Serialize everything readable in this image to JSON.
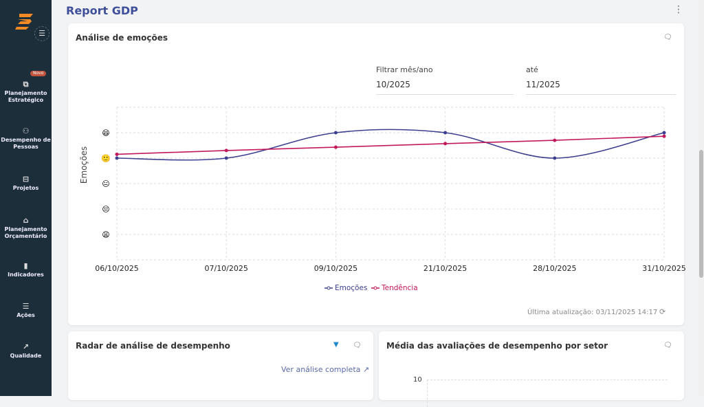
{
  "sidebar": {
    "badge": "Novo",
    "items": [
      {
        "label": "Planejamento Estratégico",
        "icon": "puzzle-icon",
        "glyph": "⧉"
      },
      {
        "label": "Desempenho de Pessoas",
        "icon": "people-icon",
        "glyph": "⚇"
      },
      {
        "label": "Projetos",
        "icon": "briefcase-icon",
        "glyph": "⊟"
      },
      {
        "label": "Planejamento Orçamentário",
        "icon": "bank-icon",
        "glyph": "⌂"
      },
      {
        "label": "Indicadores",
        "icon": "bar-chart-icon",
        "glyph": "▮"
      },
      {
        "label": "Ações",
        "icon": "checklist-icon",
        "glyph": "☰"
      },
      {
        "label": "Qualidade",
        "icon": "line-chart-icon",
        "glyph": "↗"
      }
    ]
  },
  "header": {
    "title": "Report GDP"
  },
  "emotions_card": {
    "title": "Análise de emoções",
    "filter_from_label": "Filtrar mês/ano",
    "filter_from": "10/2025",
    "filter_to_label": "até",
    "filter_to": "11/2025",
    "last_update": "Última atualização: 03/11/2025 14:17"
  },
  "radar_card": {
    "title": "Radar de análise de desempenho",
    "link": "Ver análise completa"
  },
  "sector_card": {
    "title": "Média das avaliações de desempenho por setor",
    "y_tick": "10"
  },
  "chart_data": {
    "type": "line",
    "ylabel": "Emoções",
    "ylim": [
      0,
      6
    ],
    "grid": true,
    "legend": "bottom",
    "y_tick_emojis": {
      "1": "😩",
      "2": "😔",
      "3": "😐",
      "4": "🙂",
      "5": "😄"
    },
    "categories": [
      "06/10/2025",
      "07/10/2025",
      "09/10/2025",
      "21/10/2025",
      "28/10/2025",
      "31/10/2025"
    ],
    "series": [
      {
        "name": "Emoções",
        "color": "#3c3f8f",
        "values": [
          4,
          4,
          5,
          5,
          4,
          5
        ],
        "smooth": true
      },
      {
        "name": "Tendência",
        "color": "#c2185b",
        "values": [
          4.15,
          4.3,
          4.43,
          4.57,
          4.7,
          4.86
        ]
      }
    ]
  }
}
